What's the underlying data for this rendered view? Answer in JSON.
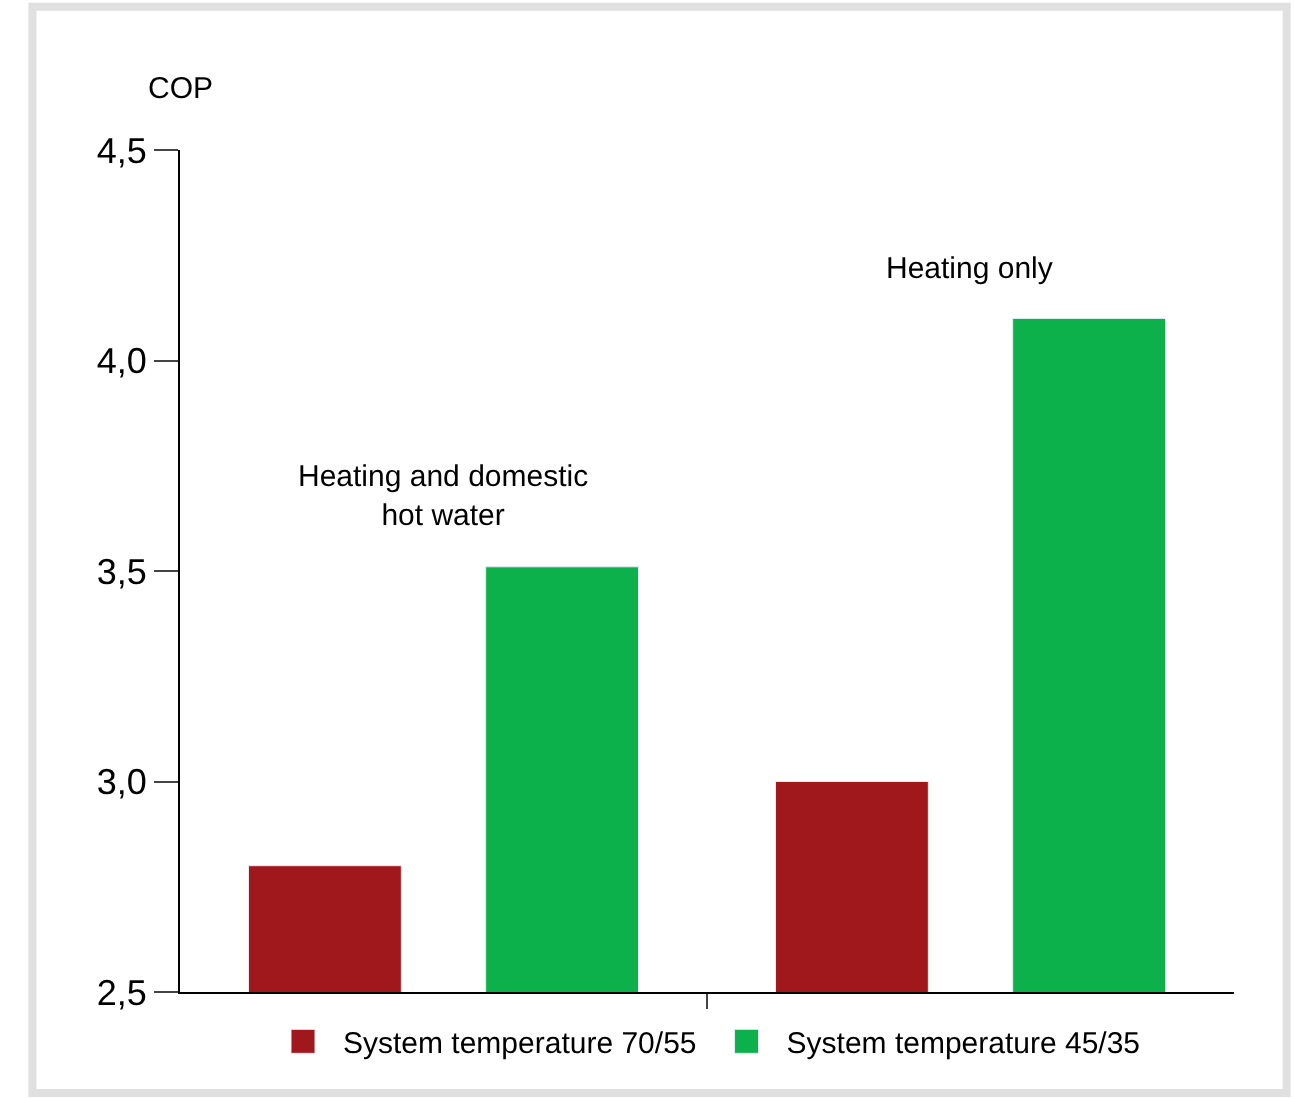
{
  "chart_data": {
    "type": "bar",
    "ylabel": "COP",
    "categories": [
      null,
      null
    ],
    "series": [
      {
        "name": "System temperature 70/55",
        "color": "#a0171c",
        "values": [
          2.8,
          3.0
        ]
      },
      {
        "name": "System temperature 45/35",
        "color": "#0db14b",
        "values": [
          3.51,
          4.1
        ]
      }
    ],
    "annotations": [
      "Heating and domestic hot water",
      "Heating only"
    ],
    "ylim": [
      2.5,
      4.5
    ],
    "yticks": [
      {
        "value": 2.5,
        "label": "2,5"
      },
      {
        "value": 3.0,
        "label": "3,0"
      },
      {
        "value": 3.5,
        "label": "3,5"
      },
      {
        "value": 4.0,
        "label": "4,0"
      },
      {
        "value": 4.5,
        "label": "4,5"
      }
    ],
    "legend": "bottom"
  }
}
